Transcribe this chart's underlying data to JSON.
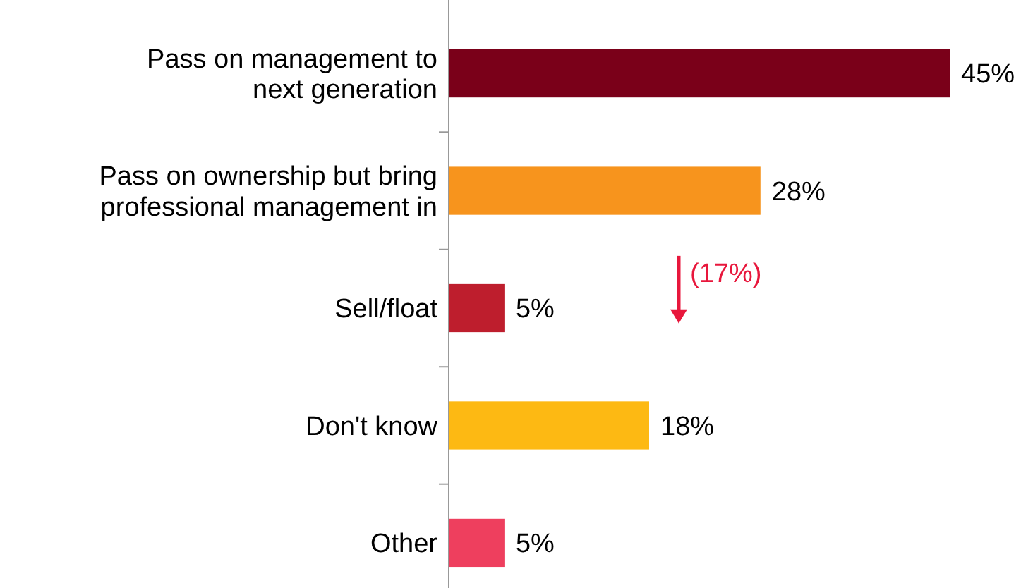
{
  "chart_data": {
    "type": "bar",
    "orientation": "horizontal",
    "value_labels": [
      "45%",
      "28%",
      "5%",
      "18%",
      "5%"
    ],
    "categories": [
      "Pass on management to\nnext generation",
      "Pass on ownership but bring\nprofessional management in",
      "Sell/float",
      "Don't know",
      "Other"
    ],
    "values": [
      45,
      28,
      5,
      18,
      5
    ],
    "colors": [
      "#7a0019",
      "#f7941d",
      "#be1e2d",
      "#fdb913",
      "#ee3f5e"
    ],
    "annotations": [
      "(17%)"
    ]
  }
}
